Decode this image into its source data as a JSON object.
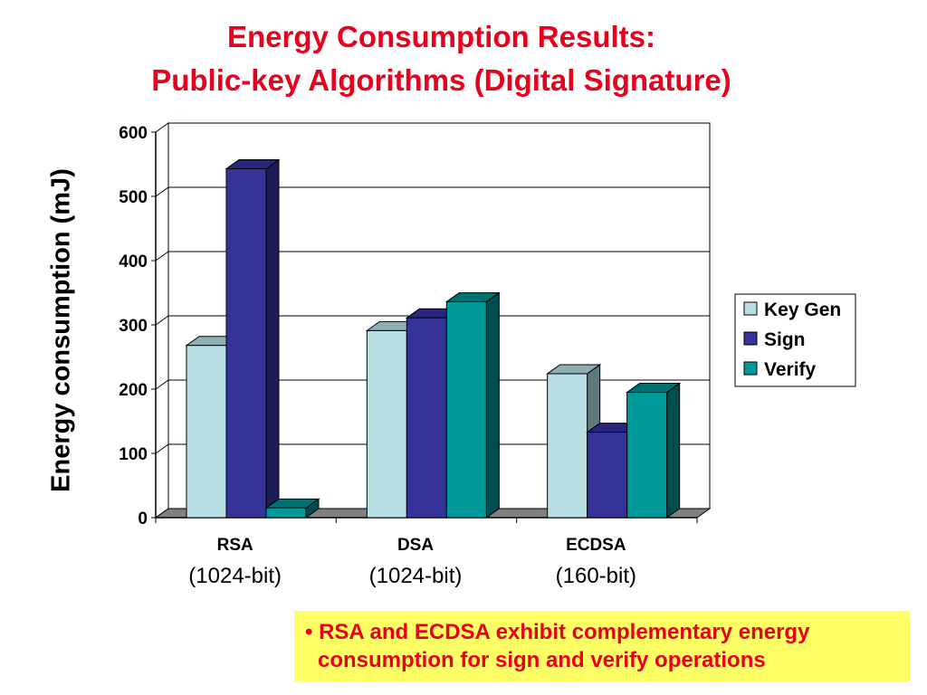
{
  "chart_data": {
    "type": "bar",
    "title": "Energy Consumption Results:",
    "subtitle": "Public-key Algorithms (Digital Signature)",
    "xlabel": "",
    "ylabel": "Energy consumption (mJ)",
    "ylim": [
      0,
      600
    ],
    "yticks": [
      "0",
      "100",
      "200",
      "300",
      "400",
      "500",
      "600"
    ],
    "categories": [
      "RSA",
      "DSA",
      "ECDSA"
    ],
    "category_sublabels": [
      "(1024-bit)",
      "(1024-bit)",
      "(160-bit)"
    ],
    "series": [
      {
        "name": "Key Gen",
        "values": [
          268,
          291,
          224
        ],
        "color": "#b8dfe3",
        "side": "#5f7a7c",
        "top": "#8fb0b3"
      },
      {
        "name": "Sign",
        "values": [
          543,
          311,
          133
        ],
        "color": "#35339a",
        "side": "#1e1c55",
        "top": "#27267a"
      },
      {
        "name": "Verify",
        "values": [
          15,
          336,
          195
        ],
        "color": "#009999",
        "side": "#004d4d",
        "top": "#007070"
      }
    ],
    "grid": true,
    "legend": "right"
  },
  "note": {
    "line1": "• RSA and ECDSA exhibit complementary energy",
    "line2": "consumption for sign and verify operations"
  }
}
